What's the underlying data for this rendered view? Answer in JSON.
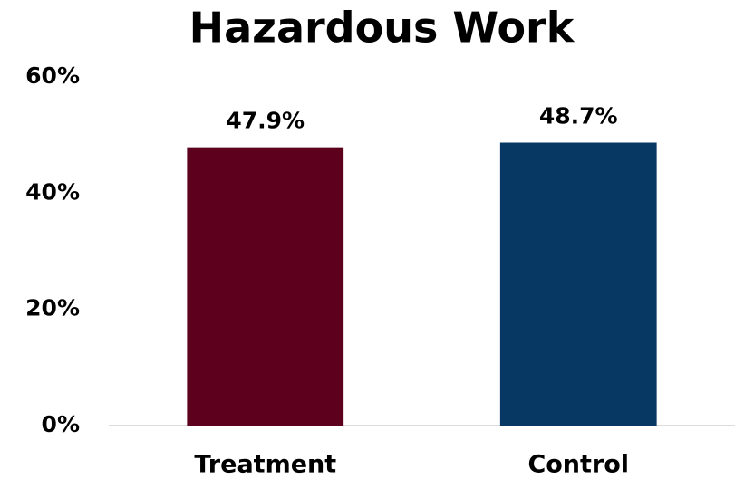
{
  "chart_data": {
    "type": "bar",
    "title": "Hazardous Work",
    "categories": [
      "Treatment",
      "Control"
    ],
    "values": [
      47.9,
      48.7
    ],
    "value_labels": [
      "47.9%",
      "48.7%"
    ],
    "colors": [
      "#5c001e",
      "#073763"
    ],
    "ylim": [
      0,
      60
    ],
    "yticks": [
      {
        "value": 0,
        "label": "0%"
      },
      {
        "value": 20,
        "label": "20%"
      },
      {
        "value": 40,
        "label": "40%"
      },
      {
        "value": 60,
        "label": "60%"
      }
    ],
    "grid": false
  }
}
